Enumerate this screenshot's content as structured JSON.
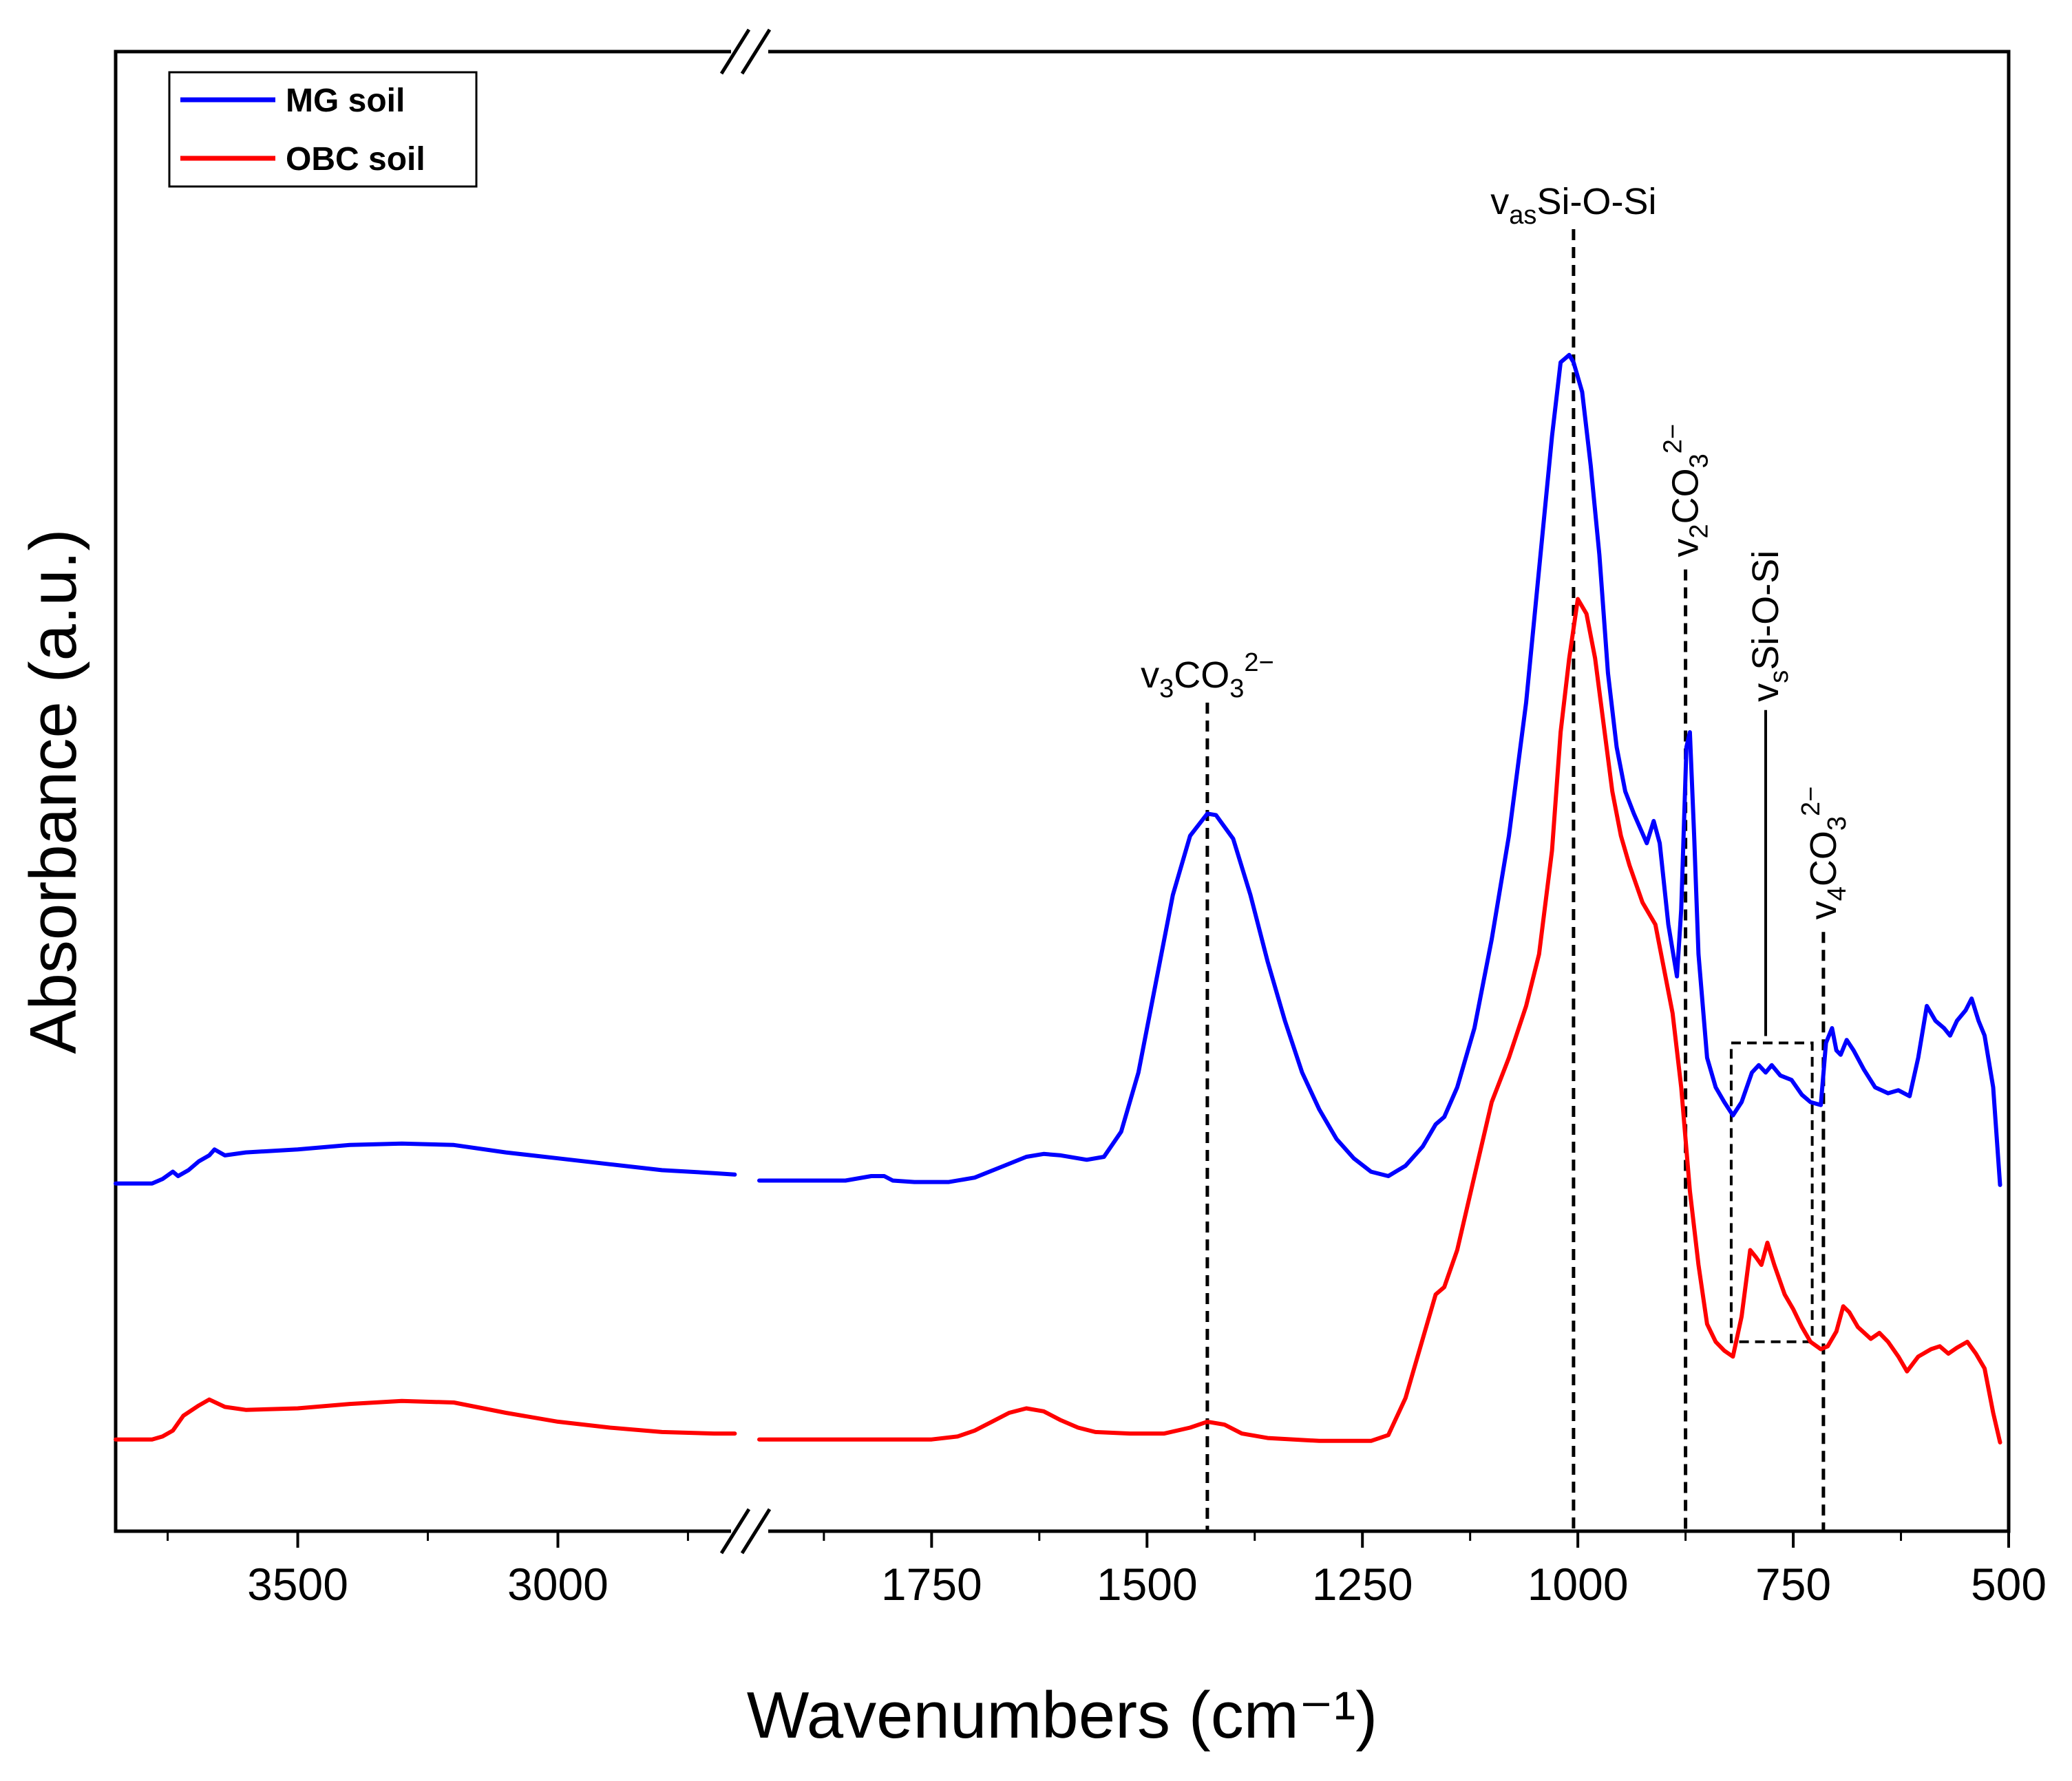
{
  "chart_data": {
    "type": "line",
    "title": "",
    "xlabel": "Wavenumbers (cm⁻¹)",
    "ylabel": "Absorbance (a.u.)",
    "x_axis": {
      "reversed": true,
      "broken": true,
      "segments": [
        {
          "from": 3850,
          "to": 2650,
          "ticks": [
            3500,
            3000
          ]
        },
        {
          "from": 1950,
          "to": 500,
          "ticks": [
            1750,
            1500,
            1250,
            1000,
            750,
            500
          ]
        }
      ],
      "tick_labels": [
        "3500",
        "3000",
        "1750",
        "1500",
        "1250",
        "1000",
        "750",
        "500"
      ]
    },
    "ylim": [
      0,
      1.0
    ],
    "legend": {
      "position": "top-left",
      "entries": [
        "MG soil",
        "OBC soil"
      ]
    },
    "series": [
      {
        "name": "MG soil",
        "color": "#0000ff",
        "points": [
          [
            3850,
            0.235
          ],
          [
            3780,
            0.235
          ],
          [
            3760,
            0.238
          ],
          [
            3740,
            0.243
          ],
          [
            3730,
            0.24
          ],
          [
            3710,
            0.244
          ],
          [
            3690,
            0.25
          ],
          [
            3670,
            0.254
          ],
          [
            3660,
            0.258
          ],
          [
            3640,
            0.254
          ],
          [
            3600,
            0.256
          ],
          [
            3500,
            0.258
          ],
          [
            3400,
            0.261
          ],
          [
            3300,
            0.262
          ],
          [
            3200,
            0.261
          ],
          [
            3100,
            0.256
          ],
          [
            3000,
            0.252
          ],
          [
            2900,
            0.248
          ],
          [
            2800,
            0.244
          ],
          [
            2700,
            0.242
          ],
          [
            2660,
            0.241
          ],
          [
            1950,
            0.237
          ],
          [
            1850,
            0.237
          ],
          [
            1820,
            0.24
          ],
          [
            1805,
            0.24
          ],
          [
            1795,
            0.237
          ],
          [
            1770,
            0.236
          ],
          [
            1730,
            0.236
          ],
          [
            1700,
            0.239
          ],
          [
            1670,
            0.246
          ],
          [
            1640,
            0.253
          ],
          [
            1620,
            0.255
          ],
          [
            1600,
            0.254
          ],
          [
            1570,
            0.251
          ],
          [
            1550,
            0.253
          ],
          [
            1530,
            0.27
          ],
          [
            1510,
            0.31
          ],
          [
            1490,
            0.37
          ],
          [
            1470,
            0.43
          ],
          [
            1450,
            0.47
          ],
          [
            1430,
            0.485
          ],
          [
            1420,
            0.484
          ],
          [
            1400,
            0.468
          ],
          [
            1380,
            0.43
          ],
          [
            1360,
            0.385
          ],
          [
            1340,
            0.345
          ],
          [
            1320,
            0.31
          ],
          [
            1300,
            0.285
          ],
          [
            1280,
            0.265
          ],
          [
            1260,
            0.252
          ],
          [
            1240,
            0.243
          ],
          [
            1220,
            0.24
          ],
          [
            1200,
            0.247
          ],
          [
            1180,
            0.26
          ],
          [
            1165,
            0.275
          ],
          [
            1155,
            0.28
          ],
          [
            1140,
            0.3
          ],
          [
            1120,
            0.34
          ],
          [
            1100,
            0.4
          ],
          [
            1080,
            0.47
          ],
          [
            1060,
            0.56
          ],
          [
            1045,
            0.65
          ],
          [
            1030,
            0.74
          ],
          [
            1020,
            0.79
          ],
          [
            1010,
            0.795
          ],
          [
            1005,
            0.79
          ],
          [
            995,
            0.77
          ],
          [
            985,
            0.72
          ],
          [
            975,
            0.66
          ],
          [
            965,
            0.58
          ],
          [
            955,
            0.53
          ],
          [
            945,
            0.5
          ],
          [
            935,
            0.485
          ],
          [
            920,
            0.465
          ],
          [
            912,
            0.48
          ],
          [
            905,
            0.465
          ],
          [
            895,
            0.41
          ],
          [
            885,
            0.375
          ],
          [
            880,
            0.42
          ],
          [
            874,
            0.53
          ],
          [
            870,
            0.54
          ],
          [
            865,
            0.47
          ],
          [
            860,
            0.39
          ],
          [
            850,
            0.32
          ],
          [
            840,
            0.3
          ],
          [
            830,
            0.29
          ],
          [
            820,
            0.281
          ],
          [
            810,
            0.29
          ],
          [
            798,
            0.31
          ],
          [
            790,
            0.315
          ],
          [
            782,
            0.31
          ],
          [
            775,
            0.315
          ],
          [
            765,
            0.308
          ],
          [
            752,
            0.305
          ],
          [
            740,
            0.295
          ],
          [
            730,
            0.29
          ],
          [
            718,
            0.288
          ],
          [
            712,
            0.33
          ],
          [
            705,
            0.34
          ],
          [
            700,
            0.325
          ],
          [
            695,
            0.322
          ],
          [
            688,
            0.332
          ],
          [
            680,
            0.325
          ],
          [
            668,
            0.312
          ],
          [
            655,
            0.3
          ],
          [
            640,
            0.296
          ],
          [
            628,
            0.298
          ],
          [
            615,
            0.294
          ],
          [
            605,
            0.32
          ],
          [
            595,
            0.355
          ],
          [
            585,
            0.345
          ],
          [
            575,
            0.34
          ],
          [
            568,
            0.335
          ],
          [
            560,
            0.345
          ],
          [
            550,
            0.352
          ],
          [
            543,
            0.36
          ],
          [
            535,
            0.345
          ],
          [
            528,
            0.335
          ],
          [
            518,
            0.3
          ],
          [
            510,
            0.234
          ]
        ]
      },
      {
        "name": "OBC soil",
        "color": "#ff0000",
        "points": [
          [
            3850,
            0.062
          ],
          [
            3780,
            0.062
          ],
          [
            3760,
            0.064
          ],
          [
            3740,
            0.068
          ],
          [
            3720,
            0.078
          ],
          [
            3690,
            0.085
          ],
          [
            3670,
            0.089
          ],
          [
            3640,
            0.084
          ],
          [
            3600,
            0.082
          ],
          [
            3500,
            0.083
          ],
          [
            3400,
            0.086
          ],
          [
            3300,
            0.088
          ],
          [
            3200,
            0.087
          ],
          [
            3100,
            0.08
          ],
          [
            3000,
            0.074
          ],
          [
            2900,
            0.07
          ],
          [
            2800,
            0.067
          ],
          [
            2700,
            0.066
          ],
          [
            2660,
            0.066
          ],
          [
            1950,
            0.062
          ],
          [
            1850,
            0.062
          ],
          [
            1750,
            0.062
          ],
          [
            1720,
            0.064
          ],
          [
            1700,
            0.068
          ],
          [
            1680,
            0.074
          ],
          [
            1660,
            0.08
          ],
          [
            1640,
            0.083
          ],
          [
            1620,
            0.081
          ],
          [
            1600,
            0.075
          ],
          [
            1580,
            0.07
          ],
          [
            1560,
            0.067
          ],
          [
            1520,
            0.066
          ],
          [
            1480,
            0.066
          ],
          [
            1450,
            0.07
          ],
          [
            1430,
            0.074
          ],
          [
            1410,
            0.072
          ],
          [
            1390,
            0.066
          ],
          [
            1360,
            0.063
          ],
          [
            1300,
            0.061
          ],
          [
            1260,
            0.061
          ],
          [
            1240,
            0.061
          ],
          [
            1220,
            0.065
          ],
          [
            1200,
            0.09
          ],
          [
            1180,
            0.13
          ],
          [
            1165,
            0.16
          ],
          [
            1155,
            0.165
          ],
          [
            1140,
            0.19
          ],
          [
            1120,
            0.24
          ],
          [
            1100,
            0.29
          ],
          [
            1080,
            0.32
          ],
          [
            1060,
            0.355
          ],
          [
            1045,
            0.39
          ],
          [
            1030,
            0.46
          ],
          [
            1020,
            0.54
          ],
          [
            1010,
            0.59
          ],
          [
            1000,
            0.63
          ],
          [
            990,
            0.62
          ],
          [
            980,
            0.59
          ],
          [
            970,
            0.545
          ],
          [
            960,
            0.5
          ],
          [
            950,
            0.47
          ],
          [
            940,
            0.45
          ],
          [
            925,
            0.425
          ],
          [
            910,
            0.41
          ],
          [
            900,
            0.38
          ],
          [
            890,
            0.35
          ],
          [
            880,
            0.3
          ],
          [
            870,
            0.23
          ],
          [
            860,
            0.18
          ],
          [
            850,
            0.14
          ],
          [
            840,
            0.128
          ],
          [
            830,
            0.122
          ],
          [
            820,
            0.118
          ],
          [
            810,
            0.145
          ],
          [
            800,
            0.19
          ],
          [
            793,
            0.185
          ],
          [
            787,
            0.18
          ],
          [
            780,
            0.195
          ],
          [
            772,
            0.18
          ],
          [
            760,
            0.16
          ],
          [
            750,
            0.15
          ],
          [
            740,
            0.138
          ],
          [
            730,
            0.128
          ],
          [
            718,
            0.123
          ],
          [
            710,
            0.125
          ],
          [
            700,
            0.135
          ],
          [
            692,
            0.152
          ],
          [
            685,
            0.148
          ],
          [
            675,
            0.138
          ],
          [
            660,
            0.13
          ],
          [
            650,
            0.134
          ],
          [
            640,
            0.128
          ],
          [
            628,
            0.118
          ],
          [
            618,
            0.108
          ],
          [
            605,
            0.118
          ],
          [
            590,
            0.123
          ],
          [
            580,
            0.125
          ],
          [
            570,
            0.12
          ],
          [
            560,
            0.124
          ],
          [
            548,
            0.128
          ],
          [
            538,
            0.12
          ],
          [
            528,
            0.11
          ],
          [
            518,
            0.08
          ],
          [
            510,
            0.06
          ]
        ]
      }
    ],
    "annotations": [
      {
        "position": 1430,
        "main": "v",
        "sub": "3",
        "body": "CO",
        "sub2": "3",
        "sup": "2−",
        "line_top": 0.56
      },
      {
        "position": 1005,
        "main": "v",
        "sub": "as",
        "body": "Si-O-Si",
        "line_top": 0.88
      },
      {
        "position": 875,
        "main": "v",
        "sub": "2",
        "body": "CO",
        "sub2": "3",
        "sup": "2−",
        "line_top": 0.65
      },
      {
        "position": 782,
        "main": "v",
        "sub": "s",
        "body": "Si-O-Si",
        "line_top": 0.55
      },
      {
        "position": 715,
        "main": "v",
        "sub": "4",
        "body": "CO",
        "sub2": "3",
        "sup": "2−",
        "line_top": 0.405
      }
    ],
    "box": {
      "x_from": 822,
      "x_to": 728,
      "y_from": 0.128,
      "y_to": 0.33
    }
  }
}
